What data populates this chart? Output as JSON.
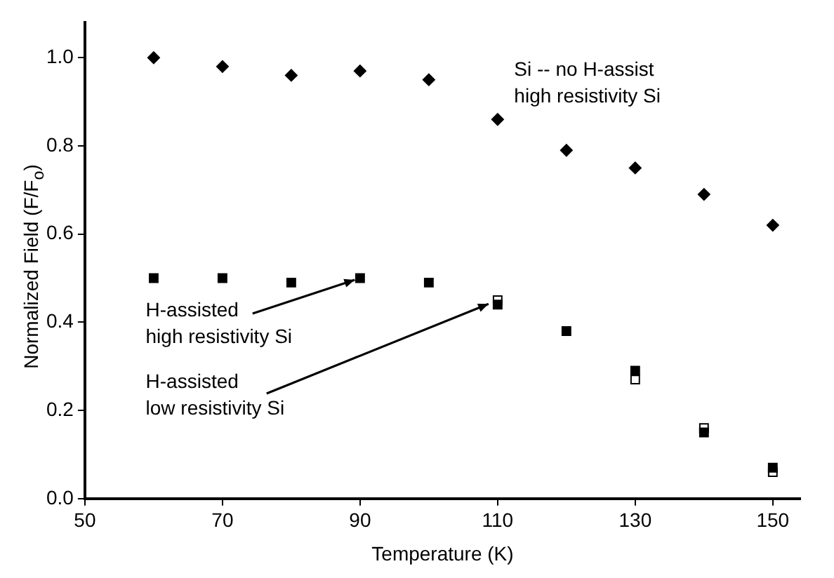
{
  "chart_data": {
    "type": "scatter",
    "xlabel": "Temperature (K)",
    "ylabel": "Normalized Field (F/F$_{o}$)",
    "xlim": [
      50,
      154
    ],
    "xticks": [
      50,
      70,
      90,
      110,
      130,
      150
    ],
    "ylim": [
      0,
      1.08
    ],
    "yticks": [
      {
        "value": 0,
        "label": "0.0"
      },
      0.2,
      0.4,
      0.6,
      0.8,
      {
        "value": 1,
        "label": "1.0"
      }
    ],
    "grid": false,
    "legend": false,
    "annotations": [
      "Si -- no H-assist\nhigh resistivity Si",
      {
        "text": "H-assisted\nhigh resistivity Si",
        "x": 90,
        "y": 0.5
      },
      {
        "text": "H-assisted\nlow resistivity Si",
        "x": 110,
        "y": 0.45
      }
    ],
    "series": [
      {
        "color": "#000000",
        "marker": "diamond",
        "x": [
          60,
          70,
          80,
          90,
          100,
          110,
          120,
          130,
          140,
          150
        ],
        "values": [
          1.0,
          0.98,
          0.96,
          0.97,
          0.95,
          0.86,
          0.79,
          0.75,
          0.69,
          0.62
        ]
      },
      {
        "color": "#000000",
        "marker": "square",
        "x": [
          60,
          70,
          80,
          90,
          100,
          110,
          120,
          130,
          140,
          150
        ],
        "values": [
          0.5,
          0.5,
          0.49,
          0.5,
          0.49,
          0.44,
          0.38,
          0.29,
          0.15,
          0.07
        ]
      },
      {
        "color": "#ffffff",
        "marker": "square",
        "x": [
          110,
          120,
          130,
          140,
          150
        ],
        "values": [
          0.45,
          null,
          0.27,
          0.16,
          0.06
        ]
      }
    ]
  }
}
